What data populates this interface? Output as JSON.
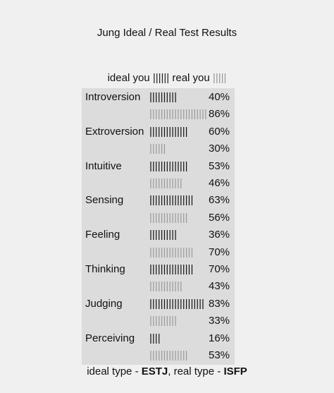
{
  "chart_data": {
    "type": "bar",
    "title": "Jung Ideal / Real Test Results",
    "legend": {
      "ideal_label": "ideal you",
      "ideal_bars": "||||||",
      "real_label": "real you",
      "real_bars": "|||||"
    },
    "categories": [
      "Introversion",
      "Extroversion",
      "Intuitive",
      "Sensing",
      "Feeling",
      "Thinking",
      "Judging",
      "Perceiving"
    ],
    "series": [
      {
        "name": "ideal you",
        "values": [
          40,
          60,
          53,
          63,
          36,
          70,
          83,
          16
        ]
      },
      {
        "name": "real you",
        "values": [
          86,
          30,
          46,
          56,
          70,
          43,
          33,
          53
        ]
      }
    ],
    "rows": [
      {
        "label": "Introversion",
        "ideal_bars": "||||||||||",
        "ideal_pct": "40%",
        "real_bars": "|||||||||||||||||||||",
        "real_pct": "86%"
      },
      {
        "label": "Extroversion",
        "ideal_bars": "||||||||||||||",
        "ideal_pct": "60%",
        "real_bars": "||||||",
        "real_pct": "30%"
      },
      {
        "label": "Intuitive",
        "ideal_bars": "||||||||||||||",
        "ideal_pct": "53%",
        "real_bars": "||||||||||||",
        "real_pct": "46%"
      },
      {
        "label": "Sensing",
        "ideal_bars": "||||||||||||||||",
        "ideal_pct": "63%",
        "real_bars": "||||||||||||||",
        "real_pct": "56%"
      },
      {
        "label": "Feeling",
        "ideal_bars": "||||||||||",
        "ideal_pct": "36%",
        "real_bars": "||||||||||||||||",
        "real_pct": "70%"
      },
      {
        "label": "Thinking",
        "ideal_bars": "||||||||||||||||",
        "ideal_pct": "70%",
        "real_bars": "||||||||||||",
        "real_pct": "43%"
      },
      {
        "label": "Judging",
        "ideal_bars": "||||||||||||||||||||",
        "ideal_pct": "83%",
        "real_bars": "||||||||||",
        "real_pct": "33%"
      },
      {
        "label": "Perceiving",
        "ideal_bars": "||||",
        "ideal_pct": "16%",
        "real_bars": "||||||||||||||",
        "real_pct": "53%"
      }
    ],
    "ideal_color": "#111111",
    "real_color": "#9a9a9a"
  },
  "footer": {
    "ideal_prefix": "ideal type - ",
    "ideal_type": "ESTJ",
    "real_prefix": ", real type - ",
    "real_type": "ISFP"
  }
}
